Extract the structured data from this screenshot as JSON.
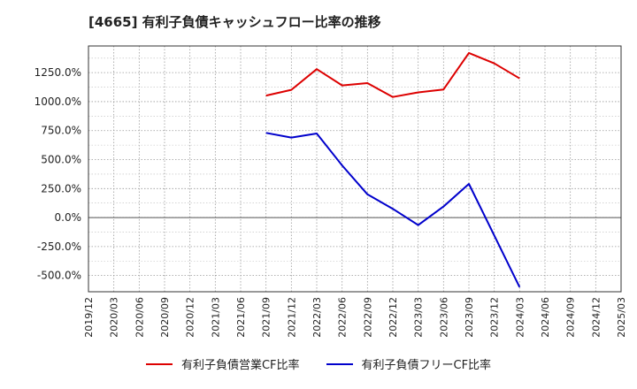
{
  "chart_data": {
    "type": "line",
    "title": "[4665]  有利子負債キャッシュフロー比率の推移",
    "x": [
      "2019/12",
      "2020/03",
      "2020/06",
      "2020/09",
      "2020/12",
      "2021/03",
      "2021/06",
      "2021/09",
      "2021/12",
      "2022/03",
      "2022/06",
      "2022/09",
      "2022/12",
      "2023/03",
      "2023/06",
      "2023/09",
      "2023/12",
      "2024/03",
      "2024/06",
      "2024/09",
      "2024/12",
      "2025/03"
    ],
    "yticks": [
      -500,
      -250,
      0,
      250,
      500,
      750,
      1000,
      1250
    ],
    "ytick_labels": [
      "-500.0%",
      "-250.0%",
      "0.0%",
      "250.0%",
      "500.0%",
      "750.0%",
      "1000.0%",
      "1250.0%"
    ],
    "ylim": [
      -640,
      1480
    ],
    "grid": true,
    "legend_position": "bottom",
    "series": [
      {
        "name": "有利子負債営業CF比率",
        "color": "#dd0000",
        "values": [
          null,
          null,
          null,
          null,
          null,
          null,
          null,
          1052,
          1102,
          1280,
          1140,
          1160,
          1040,
          1080,
          1105,
          1420,
          1330,
          1200,
          null,
          null,
          null,
          null
        ]
      },
      {
        "name": "有利子負債フリーCF比率",
        "color": "#0000cc",
        "values": [
          null,
          null,
          null,
          null,
          null,
          null,
          null,
          730,
          690,
          725,
          450,
          200,
          75,
          -65,
          95,
          290,
          -155,
          -600,
          null,
          null,
          null,
          null
        ]
      }
    ]
  }
}
